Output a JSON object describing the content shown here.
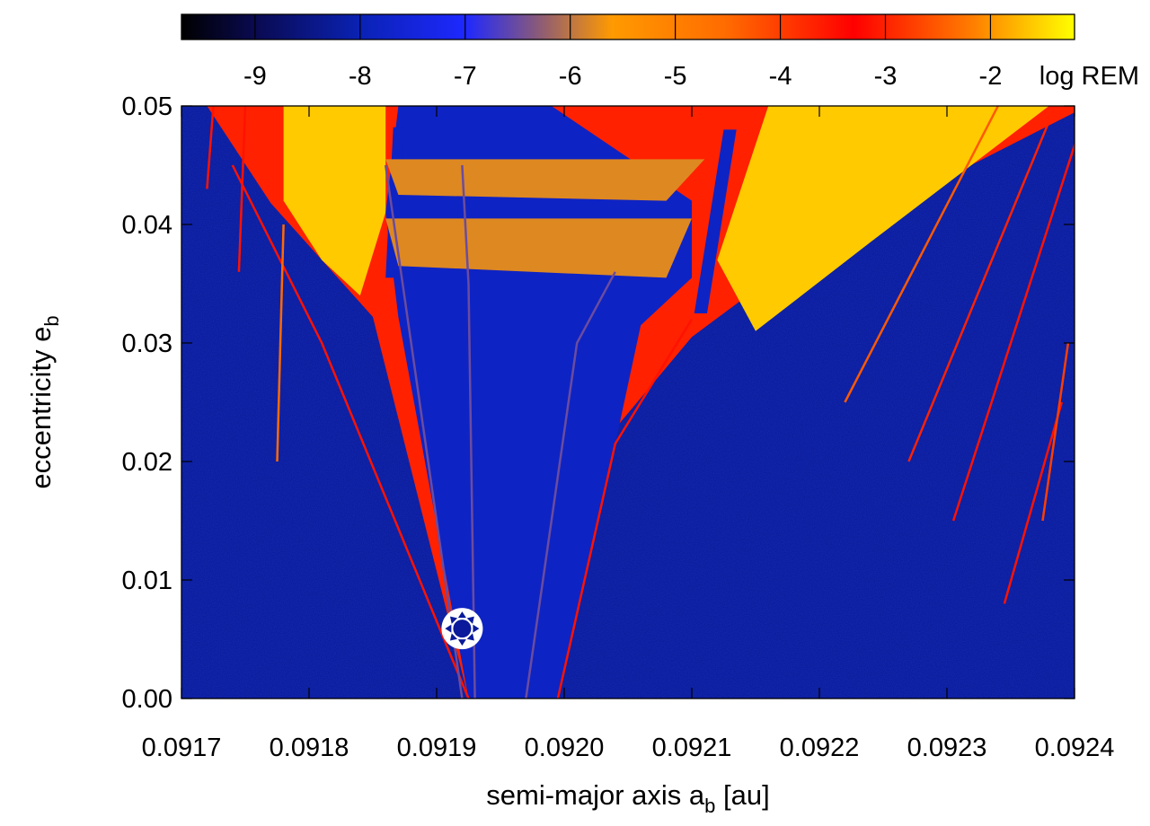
{
  "chart_data": {
    "type": "heatmap",
    "title": "",
    "xlabel": {
      "main": "semi-major axis a",
      "sub": "b",
      "unit": " [au]"
    },
    "ylabel": {
      "main": "eccentricity e",
      "sub": "b"
    },
    "xlim": [
      0.0917,
      0.0924
    ],
    "ylim": [
      0.0,
      0.05
    ],
    "x_ticks": [
      "0.0917",
      "0.0918",
      "0.0919",
      "0.0920",
      "0.0921",
      "0.0922",
      "0.0923",
      "0.0924"
    ],
    "x_tick_values": [
      0.0917,
      0.0918,
      0.0919,
      0.092,
      0.0921,
      0.0922,
      0.0923,
      0.0924
    ],
    "y_ticks": [
      "0.00",
      "0.01",
      "0.02",
      "0.03",
      "0.04",
      "0.05"
    ],
    "y_tick_values": [
      0.0,
      0.01,
      0.02,
      0.03,
      0.04,
      0.05
    ],
    "colorbar": {
      "label": "log REM",
      "range": [
        -9.7,
        -1.2
      ],
      "ticks": [
        "-9",
        "-8",
        "-7",
        "-6",
        "-5",
        "-4",
        "-3",
        "-2"
      ],
      "tick_values": [
        -9,
        -8,
        -7,
        -6,
        -5,
        -4,
        -3,
        -2
      ],
      "palette": [
        {
          "v": -9.7,
          "color": "#000000"
        },
        {
          "v": -9.0,
          "color": "#0a0a50"
        },
        {
          "v": -8.0,
          "color": "#0a22b4"
        },
        {
          "v": -7.0,
          "color": "#1e28ff"
        },
        {
          "v": -6.3,
          "color": "#8a5a78"
        },
        {
          "v": -5.6,
          "color": "#ff9a00"
        },
        {
          "v": -4.5,
          "color": "#ff6a00"
        },
        {
          "v": -3.3,
          "color": "#ff0000"
        },
        {
          "v": -2.2,
          "color": "#ff7a00"
        },
        {
          "v": -1.2,
          "color": "#ffff00"
        }
      ]
    },
    "background_level": -8.2,
    "marker": {
      "x": 0.09192,
      "y": 0.0059,
      "name": "planet-b-position"
    },
    "features": [
      {
        "name": "chaotic-wedge-zone",
        "level": -3.0,
        "polygon": [
          [
            0.09172,
            0.05
          ],
          [
            0.09241,
            0.05
          ],
          [
            0.0922,
            0.0385
          ],
          [
            0.0921,
            0.0305
          ],
          [
            0.09203,
            0.0215
          ],
          [
            0.091995,
            0.0
          ],
          [
            0.091925,
            0.0
          ],
          [
            0.09185,
            0.0322
          ],
          [
            0.09177,
            0.0418
          ]
        ]
      },
      {
        "name": "chaotic-core-left",
        "level": -1.6,
        "polygon": [
          [
            0.09178,
            0.05
          ],
          [
            0.09186,
            0.05
          ],
          [
            0.09186,
            0.041
          ],
          [
            0.09184,
            0.034
          ],
          [
            0.09181,
            0.037
          ],
          [
            0.09178,
            0.042
          ]
        ]
      },
      {
        "name": "chaotic-core-right",
        "level": -1.6,
        "polygon": [
          [
            0.09216,
            0.05
          ],
          [
            0.09238,
            0.05
          ],
          [
            0.09224,
            0.0385
          ],
          [
            0.09215,
            0.031
          ],
          [
            0.09212,
            0.037
          ]
        ]
      },
      {
        "name": "stable-central-region",
        "level": -7.8,
        "polygon": [
          [
            0.09187,
            0.05
          ],
          [
            0.09199,
            0.05
          ],
          [
            0.0921,
            0.042
          ],
          [
            0.0921,
            0.0355
          ],
          [
            0.09206,
            0.0315
          ],
          [
            0.09204,
            0.0215
          ],
          [
            0.091995,
            0.0
          ],
          [
            0.091925,
            0.0
          ],
          [
            0.09187,
            0.0322
          ],
          [
            0.09186,
            0.041
          ]
        ]
      },
      {
        "name": "stable-strip-left",
        "level": -7.8,
        "polygon": [
          [
            0.091866,
            0.0482
          ],
          [
            0.091875,
            0.0482
          ],
          [
            0.091867,
            0.0355
          ],
          [
            0.09186,
            0.0355
          ]
        ]
      },
      {
        "name": "stable-strip-right",
        "level": -7.8,
        "polygon": [
          [
            0.092125,
            0.048
          ],
          [
            0.092135,
            0.048
          ],
          [
            0.092112,
            0.0325
          ],
          [
            0.092102,
            0.0325
          ]
        ]
      },
      {
        "name": "resonance-band-upper",
        "level": -5.8,
        "polygon": [
          [
            0.09186,
            0.0455
          ],
          [
            0.09211,
            0.0455
          ],
          [
            0.09208,
            0.042
          ],
          [
            0.09187,
            0.0425
          ]
        ]
      },
      {
        "name": "resonance-band-lower",
        "level": -5.8,
        "polygon": [
          [
            0.09186,
            0.0405
          ],
          [
            0.0921,
            0.0405
          ],
          [
            0.09208,
            0.0355
          ],
          [
            0.09187,
            0.0365
          ]
        ]
      }
    ],
    "resonance_lines": [
      {
        "name": "left-boundary-line",
        "level": -3.5,
        "points": [
          [
            0.091925,
            0.0
          ],
          [
            0.09181,
            0.03
          ],
          [
            0.09174,
            0.045
          ]
        ]
      },
      {
        "name": "right-boundary-line",
        "level": -3.5,
        "points": [
          [
            0.091995,
            0.0
          ],
          [
            0.09204,
            0.0215
          ],
          [
            0.0921,
            0.032
          ]
        ]
      },
      {
        "name": "inner-line-1",
        "level": -6.5,
        "points": [
          [
            0.09192,
            0.0
          ],
          [
            0.09188,
            0.03
          ],
          [
            0.09186,
            0.045
          ]
        ]
      },
      {
        "name": "inner-line-2",
        "level": -6.5,
        "points": [
          [
            0.09193,
            0.0
          ],
          [
            0.091925,
            0.035
          ],
          [
            0.09192,
            0.045
          ]
        ]
      },
      {
        "name": "inner-line-3",
        "level": -6.5,
        "points": [
          [
            0.09197,
            0.0
          ],
          [
            0.09201,
            0.03
          ],
          [
            0.09204,
            0.036
          ]
        ]
      },
      {
        "name": "left-spike-1",
        "level": -3.5,
        "points": [
          [
            0.09172,
            0.043
          ],
          [
            0.091725,
            0.05
          ]
        ]
      },
      {
        "name": "left-spike-2",
        "level": -3.5,
        "points": [
          [
            0.091745,
            0.036
          ],
          [
            0.09175,
            0.05
          ]
        ]
      },
      {
        "name": "left-spike-3",
        "level": -4.5,
        "points": [
          [
            0.091775,
            0.02
          ],
          [
            0.09178,
            0.04
          ]
        ]
      },
      {
        "name": "right-spike-1",
        "level": -2.5,
        "points": [
          [
            0.09222,
            0.025
          ],
          [
            0.09234,
            0.05
          ]
        ]
      },
      {
        "name": "right-spike-2",
        "level": -3.0,
        "points": [
          [
            0.09227,
            0.02
          ],
          [
            0.092385,
            0.05
          ]
        ]
      },
      {
        "name": "right-spike-3",
        "level": -3.5,
        "points": [
          [
            0.092305,
            0.015
          ],
          [
            0.09241,
            0.05
          ]
        ]
      },
      {
        "name": "right-spike-4",
        "level": -3.5,
        "points": [
          [
            0.092345,
            0.008
          ],
          [
            0.09239,
            0.025
          ]
        ]
      },
      {
        "name": "right-spike-5",
        "level": -4.0,
        "points": [
          [
            0.092375,
            0.015
          ],
          [
            0.092395,
            0.03
          ]
        ]
      }
    ]
  }
}
